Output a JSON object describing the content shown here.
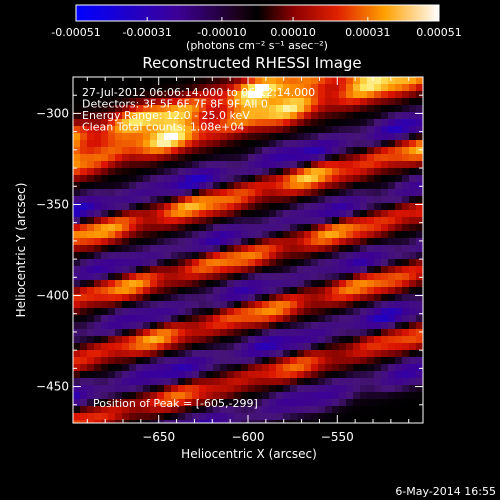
{
  "chart_data": {
    "type": "heatmap",
    "title": "Reconstructed RHESSI Image",
    "xlabel": "Heliocentric X (arcsec)",
    "ylabel": "Heliocentric Y (arcsec)",
    "xlim": [
      -698,
      -502
    ],
    "ylim": [
      -470,
      -280
    ],
    "x_ticks": [
      -650,
      -600,
      -550
    ],
    "y_ticks": [
      -300,
      -350,
      -400,
      -450
    ],
    "colorbar": {
      "label": "(photons cm⁻² s⁻¹ asec⁻²)",
      "ticks": [
        "-0.00051",
        "-0.00031",
        "-0.00010",
        "0.00010",
        "0.00031",
        "0.00051"
      ],
      "range": [
        -0.00051,
        0.00051
      ]
    },
    "info_lines": [
      "27-Jul-2012 06:06:14.000 to 06:12:14.000",
      "Detectors: 3F 5F 6F 7F 8F 9F All 0",
      "Energy Range: 12.0 - 25.0 keV",
      "Clean    Total counts: 1.08e+04"
    ],
    "peak_label": "Position of Peak = [-605,-299]",
    "peak": [
      -605,
      -299
    ],
    "stripes": [
      {
        "y": -289,
        "amp": 0.00048
      },
      {
        "y": -303,
        "amp": 0.00046
      },
      {
        "y": -330,
        "amp": -0.00038
      },
      {
        "y": -343,
        "amp": 0.00042
      },
      {
        "y": -366,
        "amp": -0.00034
      },
      {
        "y": -377,
        "amp": 0.0004
      },
      {
        "y": -398,
        "amp": -0.00032
      },
      {
        "y": -410,
        "amp": 0.00038
      },
      {
        "y": -431,
        "amp": -0.00036
      },
      {
        "y": -445,
        "amp": 0.0003
      },
      {
        "y": -465,
        "amp": -0.0003
      }
    ],
    "slope_arcsec_per_arcsec": 0.25
  },
  "footer_date": "6-May-2014 16:55"
}
